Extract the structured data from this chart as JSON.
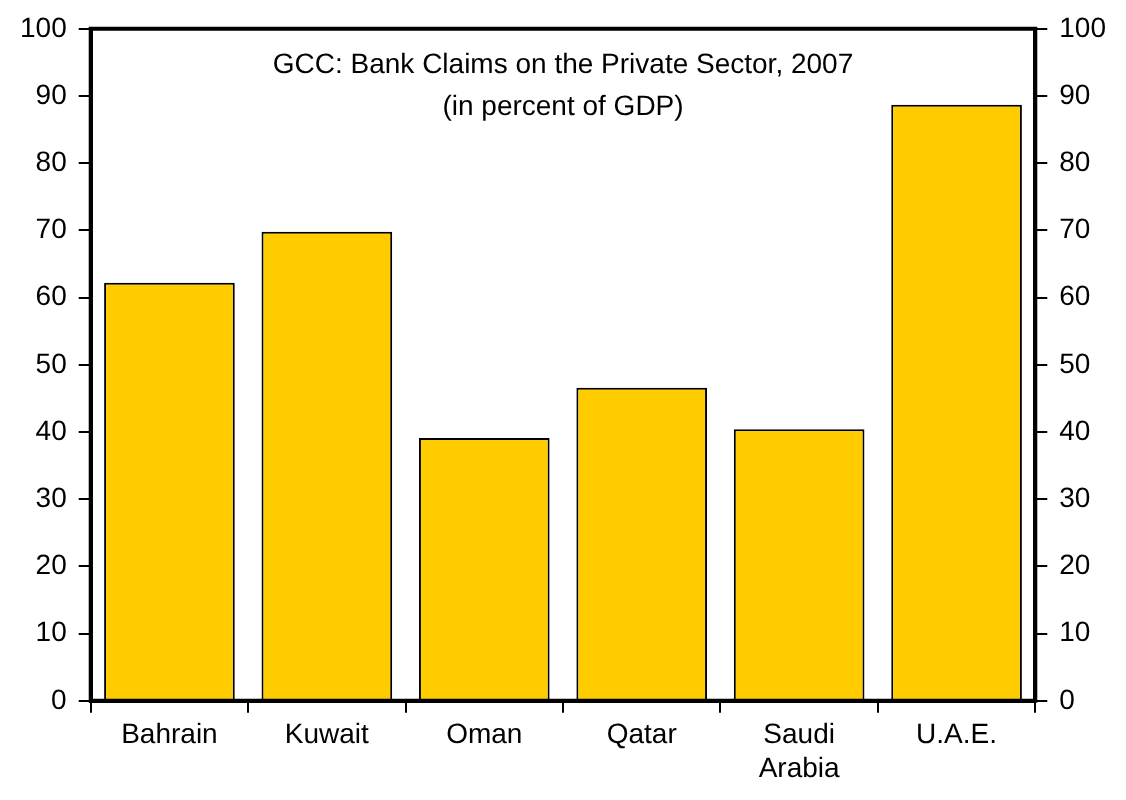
{
  "chart_data": {
    "type": "bar",
    "title": "GCC: Bank Claims on the Private Sector, 2007",
    "subtitle": "(in percent of GDP)",
    "categories": [
      "Bahrain",
      "Kuwait",
      "Oman",
      "Qatar",
      "Saudi Arabia",
      "U.A.E."
    ],
    "values": [
      62.2,
      69.8,
      39.1,
      46.6,
      40.4,
      88.7
    ],
    "color": "#ffcc00",
    "ylim": [
      0,
      100
    ],
    "yticks": [
      0,
      10,
      20,
      30,
      40,
      50,
      60,
      70,
      80,
      90,
      100
    ],
    "y2lim": [
      0,
      100
    ],
    "y2ticks": [
      0,
      10,
      20,
      30,
      40,
      50,
      60,
      70,
      80,
      90,
      100
    ],
    "grid": false,
    "legend": false
  }
}
